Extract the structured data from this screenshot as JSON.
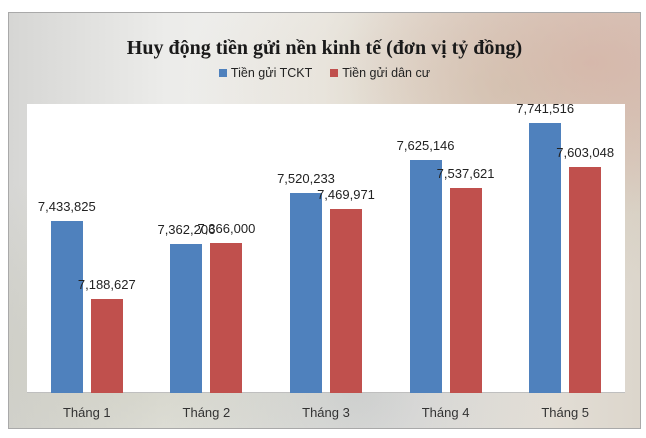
{
  "chart_data": {
    "type": "bar",
    "title": "Huy động tiền gửi nền kinh tế (đơn vị tỷ đồng)",
    "xlabel": "",
    "ylabel": "",
    "categories": [
      "Tháng 1",
      "Tháng 2",
      "Tháng 3",
      "Tháng 4",
      "Tháng 5"
    ],
    "series": [
      {
        "name": "Tiền gửi TCKT",
        "color": "#4f81bd",
        "values": [
          7433825,
          7362206,
          7520233,
          7625146,
          7741516
        ],
        "labels": [
          "7,433,825",
          "7,362,206",
          "7,520,233",
          "7,625,146",
          "7,741,516"
        ]
      },
      {
        "name": "Tiền gửi dân cư",
        "color": "#c0504d",
        "values": [
          7188627,
          7366000,
          7469971,
          7537621,
          7603048
        ],
        "labels": [
          "7,188,627",
          "7,366,000",
          "7,469,971",
          "7,537,621",
          "7,603,048"
        ]
      }
    ],
    "ylim": [
      6895000,
      7800000
    ],
    "grid": false,
    "legend_position": "top",
    "data_labels": true
  }
}
